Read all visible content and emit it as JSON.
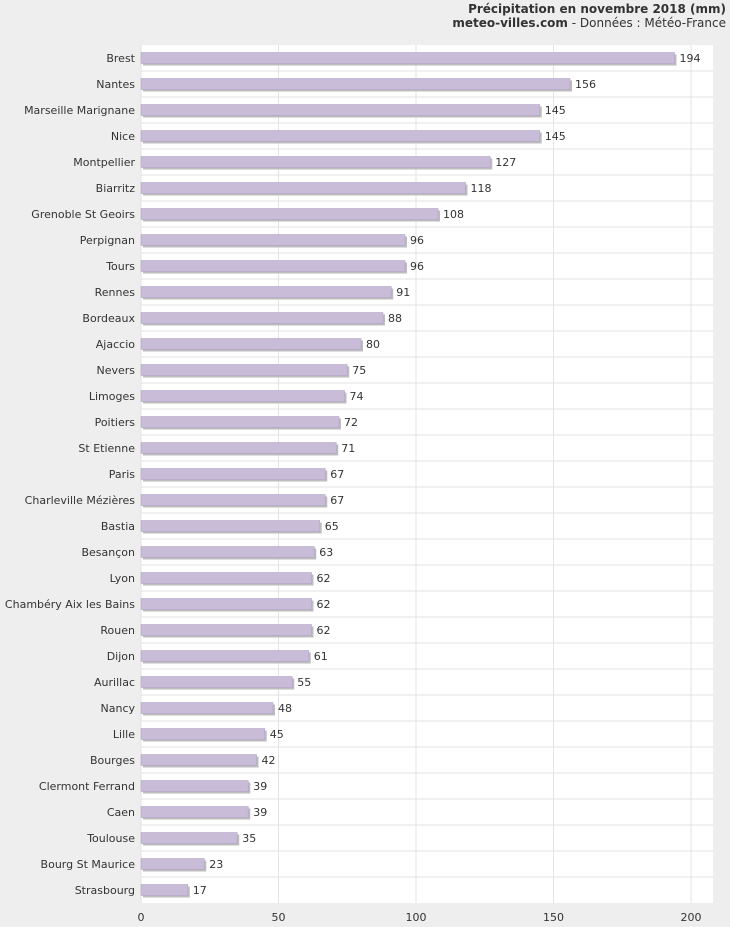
{
  "header": {
    "title": "Précipitation en novembre 2018 (mm)",
    "source_site": "meteo-villes.com",
    "source_rest": " - Données : Météo-France"
  },
  "colors": {
    "bar": "#c8bcd8",
    "bar_edge": "#b3a6c6",
    "bar_shadow": "#bdbdbd",
    "plot_bg": "#ffffff",
    "page_bg": "#eeeeee",
    "grid": "#e3e3e3"
  },
  "chart_data": {
    "type": "bar",
    "orientation": "horizontal",
    "title": "Précipitation en novembre 2018 (mm)",
    "categories": [
      "Brest",
      "Nantes",
      "Marseille Marignane",
      "Nice",
      "Montpellier",
      "Biarritz",
      "Grenoble St Geoirs",
      "Perpignan",
      "Tours",
      "Rennes",
      "Bordeaux",
      "Ajaccio",
      "Nevers",
      "Limoges",
      "Poitiers",
      "St Etienne",
      "Paris",
      "Charleville Mézières",
      "Bastia",
      "Besançon",
      "Lyon",
      "Chambéry Aix les Bains",
      "Rouen",
      "Dijon",
      "Aurillac",
      "Nancy",
      "Lille",
      "Bourges",
      "Clermont Ferrand",
      "Caen",
      "Toulouse",
      "Bourg St Maurice",
      "Strasbourg"
    ],
    "values": [
      194,
      156,
      145,
      145,
      127,
      118,
      108,
      96,
      96,
      91,
      88,
      80,
      75,
      74,
      72,
      71,
      67,
      67,
      65,
      63,
      62,
      62,
      62,
      61,
      55,
      48,
      45,
      42,
      39,
      39,
      35,
      23,
      17
    ],
    "xlim": [
      0,
      208
    ],
    "xticks": [
      0,
      50,
      100,
      150,
      200
    ],
    "grid": true,
    "data_labels": true
  }
}
